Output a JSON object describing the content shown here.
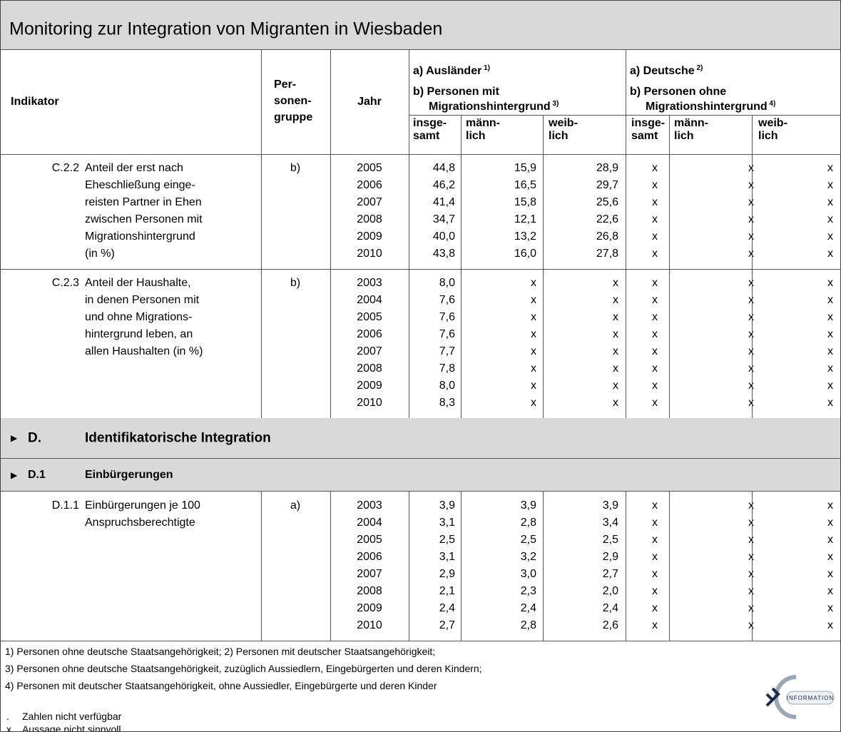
{
  "title": "Monitoring zur Integration von Migranten in Wiesbaden",
  "header": {
    "indikator": "Indikator",
    "personengruppe": [
      "Per-",
      "sonen-",
      "gruppe"
    ],
    "jahr": "Jahr",
    "groups": [
      {
        "a": "a) Ausländer",
        "a_note": "1)",
        "b": "b) Personen mit",
        "b2": "Migrationshintergrund",
        "b_note": "3)"
      },
      {
        "a": "a) Deutsche",
        "a_note": "2)",
        "b": "b) Personen ohne",
        "b2": "Migrationshintergrund",
        "b_note": "4)"
      }
    ],
    "subcolumns": [
      [
        "insge-",
        "samt"
      ],
      [
        "männ-",
        "lich"
      ],
      [
        "weib-",
        "lich"
      ],
      [
        "insge-",
        "samt"
      ],
      [
        "männ-",
        "lich"
      ],
      [
        "weib-",
        "lich"
      ]
    ]
  },
  "blocks": [
    {
      "code": "C.2.2",
      "text": [
        "Anteil der erst nach",
        "Eheschließung einge-",
        "reisten Partner in Ehen",
        "zwischen Personen mit",
        "Migrationshintergrund",
        "(in %)"
      ],
      "group": "b)",
      "rows": [
        [
          2005,
          "44,8",
          "15,9",
          "28,9",
          "x",
          "x",
          "x"
        ],
        [
          2006,
          "46,2",
          "16,5",
          "29,7",
          "x",
          "x",
          "x"
        ],
        [
          2007,
          "41,4",
          "15,8",
          "25,6",
          "x",
          "x",
          "x"
        ],
        [
          2008,
          "34,7",
          "12,1",
          "22,6",
          "x",
          "x",
          "x"
        ],
        [
          2009,
          "40,0",
          "13,2",
          "26,8",
          "x",
          "x",
          "x"
        ],
        [
          2010,
          "43,8",
          "16,0",
          "27,8",
          "x",
          "x",
          "x"
        ]
      ]
    },
    {
      "code": "C.2.3",
      "text": [
        "Anteil der Haushalte,",
        "in denen Personen mit",
        "und ohne Migrations-",
        "hintergrund leben, an",
        "allen Haushalten (in %)"
      ],
      "group": "b)",
      "rows": [
        [
          2003,
          "8,0",
          "x",
          "x",
          "x",
          "x",
          "x"
        ],
        [
          2004,
          "7,6",
          "x",
          "x",
          "x",
          "x",
          "x"
        ],
        [
          2005,
          "7,6",
          "x",
          "x",
          "x",
          "x",
          "x"
        ],
        [
          2006,
          "7,6",
          "x",
          "x",
          "x",
          "x",
          "x"
        ],
        [
          2007,
          "7,7",
          "x",
          "x",
          "x",
          "x",
          "x"
        ],
        [
          2008,
          "7,8",
          "x",
          "x",
          "x",
          "x",
          "x"
        ],
        [
          2009,
          "8,0",
          "x",
          "x",
          "x",
          "x",
          "x"
        ],
        [
          2010,
          "8,3",
          "x",
          "x",
          "x",
          "x",
          "x"
        ]
      ]
    }
  ],
  "section": {
    "code": "D.",
    "title": "Identifikatorische Integration"
  },
  "subsection": {
    "code": "D.1",
    "title": "Einbürgerungen"
  },
  "blocks_d": [
    {
      "code": "D.1.1",
      "text": [
        "Einbürgerungen je 100",
        "Anspruchsberechtigte"
      ],
      "group": "a)",
      "rows": [
        [
          2003,
          "3,9",
          "3,9",
          "3,9",
          "x",
          "x",
          "x"
        ],
        [
          2004,
          "3,1",
          "2,8",
          "3,4",
          "x",
          "x",
          "x"
        ],
        [
          2005,
          "2,5",
          "2,5",
          "2,5",
          "x",
          "x",
          "x"
        ],
        [
          2006,
          "3,1",
          "3,2",
          "2,9",
          "x",
          "x",
          "x"
        ],
        [
          2007,
          "2,9",
          "3,0",
          "2,7",
          "x",
          "x",
          "x"
        ],
        [
          2008,
          "2,1",
          "2,3",
          "2,0",
          "x",
          "x",
          "x"
        ],
        [
          2009,
          "2,4",
          "2,4",
          "2,4",
          "x",
          "x",
          "x"
        ],
        [
          2010,
          "2,7",
          "2,8",
          "2,6",
          "x",
          "x",
          "x"
        ]
      ]
    }
  ],
  "footnotes": [
    "1) Personen ohne deutsche Staatsangehörigkeit; 2) Personen mit deutscher Staatsangehörigkeit;",
    "3) Personen ohne deutsche Staatsangehörigkeit, zuzüglich Aussiedlern, Eingebürgerten und deren Kindern;",
    "4) Personen mit deutscher Staatsangehörigkeit, ohne Aussiedler, Eingebürgerte und deren Kinder"
  ],
  "legend": [
    {
      "symbol": ".",
      "text": "Zahlen nicht verfügbar"
    },
    {
      "symbol": "x",
      "text": "Aussage nicht sinnvoll"
    }
  ],
  "logo": "INFORMATION"
}
